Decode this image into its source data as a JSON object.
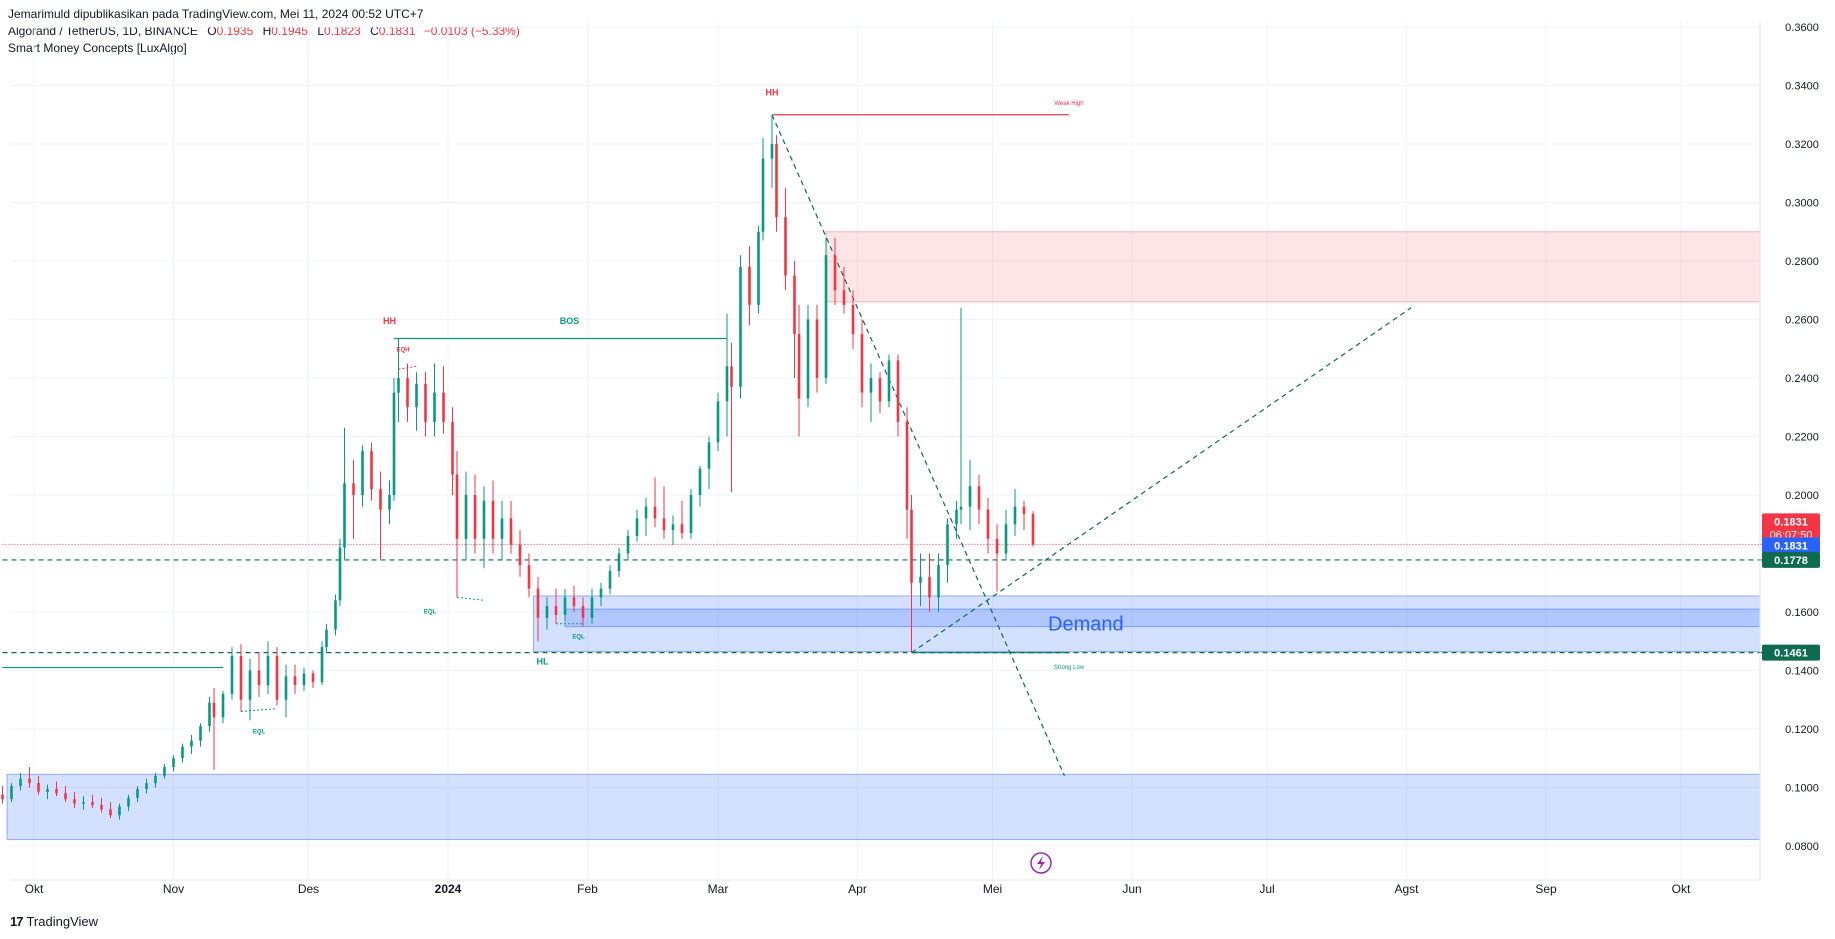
{
  "header": {
    "publisher": "Jemarimuld dipublikasikan pada TradingView.com, Mei 11, 2024 00:52 UTC+7",
    "symbol": "Algorand / TetherUS, 1D, BINANCE",
    "o_label": "O",
    "o_value": "0.1935",
    "h_label": "H",
    "h_value": "0.1945",
    "l_label": "L",
    "l_value": "0.1823",
    "c_label": "C",
    "c_value": "0.1831",
    "change": "−0.0103 (−5.33%)",
    "indicator": "Smart Money Concepts [LuxAlgo]"
  },
  "footer": {
    "logo_mark": "17",
    "brand": "TradingView"
  },
  "chart_data": {
    "type": "candlestick",
    "timeframe": "1D",
    "yticks": [
      0.36,
      0.34,
      0.32,
      0.3,
      0.28,
      0.26,
      0.24,
      0.22,
      0.2,
      0.16,
      0.14,
      0.12,
      0.1,
      0.08
    ],
    "xticks": [
      "Okt",
      "Nov",
      "Des",
      "2024",
      "Feb",
      "Mar",
      "Apr",
      "Mei",
      "Jun",
      "Jul",
      "Agst",
      "Sep",
      "Okt"
    ],
    "ylim": [
      0.073,
      0.36
    ],
    "colors": {
      "up": "#089981",
      "down": "#f23645",
      "demand": "#2962ff",
      "supply": "#f23645",
      "zone_text": "#2962ff"
    },
    "price_labels": [
      {
        "value": 0.1831,
        "text": "0.1831",
        "countdown": "06:07:50",
        "color": "#f23645"
      },
      {
        "value": 0.1831,
        "text": "0.1831",
        "color": "#2962ff"
      },
      {
        "value": 0.1778,
        "text": "0.1778",
        "color": "#0e6b4f"
      },
      {
        "value": 0.1461,
        "text": "0.1461",
        "color": "#0e6b4f"
      }
    ],
    "zones": [
      {
        "kind": "supply",
        "x_start": "2024-03-25",
        "top": 0.29,
        "bottom": 0.266
      },
      {
        "kind": "demand",
        "x_start": "2024-01-20",
        "top": 0.1655,
        "bottom": 0.1465,
        "label": "Demand"
      },
      {
        "kind": "demand",
        "x_start": "2024-01-27",
        "top": 0.161,
        "bottom": 0.155
      },
      {
        "kind": "demand",
        "x_start": "2023-09-25",
        "top": 0.1045,
        "bottom": 0.0822
      }
    ],
    "labels": [
      {
        "text": "HH",
        "date": "2024-03-13",
        "value": 0.3365,
        "color": "#f23645"
      },
      {
        "text": "Weak High",
        "date": "2024-05-18",
        "value": 0.3333,
        "color": "#f23645"
      },
      {
        "text": "HH",
        "date": "2023-12-19",
        "value": 0.2585,
        "color": "#f23645"
      },
      {
        "text": "BOS",
        "date": "2024-01-28",
        "value": 0.2585,
        "color": "#089981"
      },
      {
        "text": "EQH",
        "date": "2023-12-22",
        "value": 0.249,
        "color": "#f23645"
      },
      {
        "text": "EQL",
        "date": "2023-12-28",
        "value": 0.1595,
        "color": "#089981"
      },
      {
        "text": "EQL",
        "date": "2024-01-30",
        "value": 0.151,
        "color": "#089981"
      },
      {
        "text": "HL",
        "date": "2024-01-22",
        "value": 0.142,
        "color": "#089981"
      },
      {
        "text": "EQL",
        "date": "2023-11-20",
        "value": 0.1185,
        "color": "#089981"
      },
      {
        "text": "Strong Low",
        "date": "2024-05-18",
        "value": 0.1405,
        "color": "#089981"
      }
    ],
    "candles": [
      {
        "d": "2023-09-24",
        "o": 0.0975,
        "h": 0.1005,
        "l": 0.0945,
        "c": 0.096
      },
      {
        "d": "2023-09-26",
        "o": 0.096,
        "h": 0.1015,
        "l": 0.095,
        "c": 0.1005
      },
      {
        "d": "2023-09-28",
        "o": 0.1005,
        "h": 0.105,
        "l": 0.099,
        "c": 0.103
      },
      {
        "d": "2023-09-30",
        "o": 0.103,
        "h": 0.107,
        "l": 0.1,
        "c": 0.1015
      },
      {
        "d": "2023-10-02",
        "o": 0.1015,
        "h": 0.104,
        "l": 0.0975,
        "c": 0.0985
      },
      {
        "d": "2023-10-04",
        "o": 0.0985,
        "h": 0.101,
        "l": 0.096,
        "c": 0.0995
      },
      {
        "d": "2023-10-06",
        "o": 0.0995,
        "h": 0.102,
        "l": 0.097,
        "c": 0.098
      },
      {
        "d": "2023-10-08",
        "o": 0.098,
        "h": 0.1005,
        "l": 0.095,
        "c": 0.096
      },
      {
        "d": "2023-10-10",
        "o": 0.096,
        "h": 0.0985,
        "l": 0.093,
        "c": 0.0945
      },
      {
        "d": "2023-10-12",
        "o": 0.0945,
        "h": 0.097,
        "l": 0.0925,
        "c": 0.095
      },
      {
        "d": "2023-10-14",
        "o": 0.095,
        "h": 0.0975,
        "l": 0.093,
        "c": 0.094
      },
      {
        "d": "2023-10-16",
        "o": 0.094,
        "h": 0.0965,
        "l": 0.0915,
        "c": 0.0925
      },
      {
        "d": "2023-10-18",
        "o": 0.0925,
        "h": 0.095,
        "l": 0.0895,
        "c": 0.0905
      },
      {
        "d": "2023-10-20",
        "o": 0.0905,
        "h": 0.0945,
        "l": 0.089,
        "c": 0.0935
      },
      {
        "d": "2023-10-22",
        "o": 0.0935,
        "h": 0.0975,
        "l": 0.092,
        "c": 0.0965
      },
      {
        "d": "2023-10-24",
        "o": 0.0965,
        "h": 0.1005,
        "l": 0.095,
        "c": 0.0995
      },
      {
        "d": "2023-10-26",
        "o": 0.0995,
        "h": 0.103,
        "l": 0.098,
        "c": 0.1015
      },
      {
        "d": "2023-10-28",
        "o": 0.1015,
        "h": 0.105,
        "l": 0.1,
        "c": 0.104
      },
      {
        "d": "2023-10-30",
        "o": 0.104,
        "h": 0.108,
        "l": 0.103,
        "c": 0.107
      },
      {
        "d": "2023-11-01",
        "o": 0.107,
        "h": 0.111,
        "l": 0.1055,
        "c": 0.11
      },
      {
        "d": "2023-11-03",
        "o": 0.11,
        "h": 0.115,
        "l": 0.1085,
        "c": 0.114
      },
      {
        "d": "2023-11-05",
        "o": 0.114,
        "h": 0.118,
        "l": 0.1115,
        "c": 0.116
      },
      {
        "d": "2023-11-07",
        "o": 0.116,
        "h": 0.122,
        "l": 0.114,
        "c": 0.121
      },
      {
        "d": "2023-11-09",
        "o": 0.121,
        "h": 0.131,
        "l": 0.119,
        "c": 0.129
      },
      {
        "d": "2023-11-10",
        "o": 0.129,
        "h": 0.134,
        "l": 0.106,
        "c": 0.124
      },
      {
        "d": "2023-11-12",
        "o": 0.124,
        "h": 0.133,
        "l": 0.122,
        "c": 0.132
      },
      {
        "d": "2023-11-14",
        "o": 0.132,
        "h": 0.148,
        "l": 0.13,
        "c": 0.145
      },
      {
        "d": "2023-11-16",
        "o": 0.145,
        "h": 0.149,
        "l": 0.126,
        "c": 0.13
      },
      {
        "d": "2023-11-18",
        "o": 0.13,
        "h": 0.144,
        "l": 0.123,
        "c": 0.14
      },
      {
        "d": "2023-11-20",
        "o": 0.14,
        "h": 0.146,
        "l": 0.131,
        "c": 0.135
      },
      {
        "d": "2023-11-22",
        "o": 0.135,
        "h": 0.15,
        "l": 0.132,
        "c": 0.145
      },
      {
        "d": "2023-11-24",
        "o": 0.145,
        "h": 0.148,
        "l": 0.128,
        "c": 0.13
      },
      {
        "d": "2023-11-26",
        "o": 0.13,
        "h": 0.142,
        "l": 0.124,
        "c": 0.138
      },
      {
        "d": "2023-11-28",
        "o": 0.138,
        "h": 0.142,
        "l": 0.132,
        "c": 0.135
      },
      {
        "d": "2023-11-30",
        "o": 0.135,
        "h": 0.141,
        "l": 0.133,
        "c": 0.139
      },
      {
        "d": "2023-12-02",
        "o": 0.139,
        "h": 0.14,
        "l": 0.134,
        "c": 0.136
      },
      {
        "d": "2023-12-04",
        "o": 0.136,
        "h": 0.15,
        "l": 0.135,
        "c": 0.148
      },
      {
        "d": "2023-12-05",
        "o": 0.148,
        "h": 0.156,
        "l": 0.146,
        "c": 0.154
      },
      {
        "d": "2023-12-07",
        "o": 0.154,
        "h": 0.166,
        "l": 0.152,
        "c": 0.164
      },
      {
        "d": "2023-12-08",
        "o": 0.164,
        "h": 0.185,
        "l": 0.162,
        "c": 0.182
      },
      {
        "d": "2023-12-09",
        "o": 0.182,
        "h": 0.223,
        "l": 0.178,
        "c": 0.204
      },
      {
        "d": "2023-12-11",
        "o": 0.204,
        "h": 0.212,
        "l": 0.185,
        "c": 0.2
      },
      {
        "d": "2023-12-13",
        "o": 0.2,
        "h": 0.217,
        "l": 0.196,
        "c": 0.215
      },
      {
        "d": "2023-12-15",
        "o": 0.215,
        "h": 0.218,
        "l": 0.198,
        "c": 0.202
      },
      {
        "d": "2023-12-17",
        "o": 0.202,
        "h": 0.208,
        "l": 0.178,
        "c": 0.195
      },
      {
        "d": "2023-12-19",
        "o": 0.195,
        "h": 0.205,
        "l": 0.19,
        "c": 0.2
      },
      {
        "d": "2023-12-20",
        "o": 0.2,
        "h": 0.24,
        "l": 0.198,
        "c": 0.235
      },
      {
        "d": "2023-12-21",
        "o": 0.235,
        "h": 0.2535,
        "l": 0.225,
        "c": 0.24
      },
      {
        "d": "2023-12-23",
        "o": 0.24,
        "h": 0.245,
        "l": 0.225,
        "c": 0.23
      },
      {
        "d": "2023-12-25",
        "o": 0.23,
        "h": 0.242,
        "l": 0.222,
        "c": 0.238
      },
      {
        "d": "2023-12-27",
        "o": 0.238,
        "h": 0.242,
        "l": 0.22,
        "c": 0.225
      },
      {
        "d": "2023-12-29",
        "o": 0.225,
        "h": 0.245,
        "l": 0.22,
        "c": 0.235
      },
      {
        "d": "2023-12-31",
        "o": 0.235,
        "h": 0.244,
        "l": 0.221,
        "c": 0.225
      },
      {
        "d": "2024-01-02",
        "o": 0.225,
        "h": 0.23,
        "l": 0.2,
        "c": 0.207
      },
      {
        "d": "2024-01-03",
        "o": 0.207,
        "h": 0.215,
        "l": 0.165,
        "c": 0.185
      },
      {
        "d": "2024-01-05",
        "o": 0.185,
        "h": 0.208,
        "l": 0.178,
        "c": 0.2
      },
      {
        "d": "2024-01-07",
        "o": 0.2,
        "h": 0.207,
        "l": 0.18,
        "c": 0.185
      },
      {
        "d": "2024-01-09",
        "o": 0.185,
        "h": 0.203,
        "l": 0.175,
        "c": 0.198
      },
      {
        "d": "2024-01-11",
        "o": 0.198,
        "h": 0.205,
        "l": 0.18,
        "c": 0.185
      },
      {
        "d": "2024-01-13",
        "o": 0.185,
        "h": 0.198,
        "l": 0.178,
        "c": 0.192
      },
      {
        "d": "2024-01-15",
        "o": 0.192,
        "h": 0.198,
        "l": 0.18,
        "c": 0.183
      },
      {
        "d": "2024-01-17",
        "o": 0.183,
        "h": 0.188,
        "l": 0.172,
        "c": 0.176
      },
      {
        "d": "2024-01-19",
        "o": 0.176,
        "h": 0.18,
        "l": 0.165,
        "c": 0.168
      },
      {
        "d": "2024-01-21",
        "o": 0.168,
        "h": 0.172,
        "l": 0.15,
        "c": 0.158
      },
      {
        "d": "2024-01-23",
        "o": 0.158,
        "h": 0.165,
        "l": 0.154,
        "c": 0.162
      },
      {
        "d": "2024-01-25",
        "o": 0.162,
        "h": 0.168,
        "l": 0.156,
        "c": 0.159
      },
      {
        "d": "2024-01-27",
        "o": 0.159,
        "h": 0.168,
        "l": 0.157,
        "c": 0.165
      },
      {
        "d": "2024-01-29",
        "o": 0.165,
        "h": 0.169,
        "l": 0.16,
        "c": 0.162
      },
      {
        "d": "2024-01-31",
        "o": 0.162,
        "h": 0.165,
        "l": 0.155,
        "c": 0.158
      },
      {
        "d": "2024-02-02",
        "o": 0.158,
        "h": 0.168,
        "l": 0.156,
        "c": 0.165
      },
      {
        "d": "2024-02-04",
        "o": 0.165,
        "h": 0.17,
        "l": 0.162,
        "c": 0.168
      },
      {
        "d": "2024-02-06",
        "o": 0.168,
        "h": 0.176,
        "l": 0.166,
        "c": 0.174
      },
      {
        "d": "2024-02-08",
        "o": 0.174,
        "h": 0.182,
        "l": 0.172,
        "c": 0.18
      },
      {
        "d": "2024-02-10",
        "o": 0.18,
        "h": 0.188,
        "l": 0.178,
        "c": 0.186
      },
      {
        "d": "2024-02-12",
        "o": 0.186,
        "h": 0.195,
        "l": 0.184,
        "c": 0.192
      },
      {
        "d": "2024-02-14",
        "o": 0.192,
        "h": 0.199,
        "l": 0.186,
        "c": 0.196
      },
      {
        "d": "2024-02-16",
        "o": 0.196,
        "h": 0.206,
        "l": 0.189,
        "c": 0.192
      },
      {
        "d": "2024-02-18",
        "o": 0.192,
        "h": 0.203,
        "l": 0.185,
        "c": 0.188
      },
      {
        "d": "2024-02-20",
        "o": 0.188,
        "h": 0.193,
        "l": 0.183,
        "c": 0.19
      },
      {
        "d": "2024-02-22",
        "o": 0.19,
        "h": 0.198,
        "l": 0.185,
        "c": 0.187
      },
      {
        "d": "2024-02-24",
        "o": 0.187,
        "h": 0.202,
        "l": 0.185,
        "c": 0.2
      },
      {
        "d": "2024-02-26",
        "o": 0.2,
        "h": 0.21,
        "l": 0.196,
        "c": 0.209
      },
      {
        "d": "2024-02-28",
        "o": 0.209,
        "h": 0.22,
        "l": 0.202,
        "c": 0.218
      },
      {
        "d": "2024-03-01",
        "o": 0.218,
        "h": 0.235,
        "l": 0.215,
        "c": 0.232
      },
      {
        "d": "2024-03-03",
        "o": 0.232,
        "h": 0.262,
        "l": 0.22,
        "c": 0.244
      },
      {
        "d": "2024-03-04",
        "o": 0.244,
        "h": 0.252,
        "l": 0.201,
        "c": 0.237
      },
      {
        "d": "2024-03-06",
        "o": 0.237,
        "h": 0.282,
        "l": 0.233,
        "c": 0.278
      },
      {
        "d": "2024-03-08",
        "o": 0.278,
        "h": 0.285,
        "l": 0.258,
        "c": 0.265
      },
      {
        "d": "2024-03-10",
        "o": 0.265,
        "h": 0.292,
        "l": 0.262,
        "c": 0.29
      },
      {
        "d": "2024-03-11",
        "o": 0.29,
        "h": 0.322,
        "l": 0.287,
        "c": 0.315
      },
      {
        "d": "2024-03-13",
        "o": 0.315,
        "h": 0.33,
        "l": 0.305,
        "c": 0.32
      },
      {
        "d": "2024-03-14",
        "o": 0.32,
        "h": 0.323,
        "l": 0.29,
        "c": 0.295
      },
      {
        "d": "2024-03-16",
        "o": 0.295,
        "h": 0.305,
        "l": 0.27,
        "c": 0.275
      },
      {
        "d": "2024-03-18",
        "o": 0.275,
        "h": 0.28,
        "l": 0.24,
        "c": 0.255
      },
      {
        "d": "2024-03-19",
        "o": 0.255,
        "h": 0.265,
        "l": 0.22,
        "c": 0.233
      },
      {
        "d": "2024-03-21",
        "o": 0.233,
        "h": 0.265,
        "l": 0.23,
        "c": 0.26
      },
      {
        "d": "2024-03-23",
        "o": 0.26,
        "h": 0.265,
        "l": 0.235,
        "c": 0.24
      },
      {
        "d": "2024-03-25",
        "o": 0.24,
        "h": 0.288,
        "l": 0.238,
        "c": 0.282
      },
      {
        "d": "2024-03-27",
        "o": 0.282,
        "h": 0.288,
        "l": 0.265,
        "c": 0.27
      },
      {
        "d": "2024-03-29",
        "o": 0.27,
        "h": 0.278,
        "l": 0.262,
        "c": 0.265
      },
      {
        "d": "2024-03-31",
        "o": 0.265,
        "h": 0.27,
        "l": 0.25,
        "c": 0.255
      },
      {
        "d": "2024-04-02",
        "o": 0.255,
        "h": 0.26,
        "l": 0.23,
        "c": 0.235
      },
      {
        "d": "2024-04-04",
        "o": 0.235,
        "h": 0.245,
        "l": 0.225,
        "c": 0.24
      },
      {
        "d": "2024-04-06",
        "o": 0.24,
        "h": 0.242,
        "l": 0.228,
        "c": 0.232
      },
      {
        "d": "2024-04-08",
        "o": 0.232,
        "h": 0.248,
        "l": 0.23,
        "c": 0.246
      },
      {
        "d": "2024-04-10",
        "o": 0.246,
        "h": 0.248,
        "l": 0.22,
        "c": 0.225
      },
      {
        "d": "2024-04-12",
        "o": 0.225,
        "h": 0.23,
        "l": 0.185,
        "c": 0.195
      },
      {
        "d": "2024-04-13",
        "o": 0.195,
        "h": 0.2,
        "l": 0.146,
        "c": 0.17
      },
      {
        "d": "2024-04-15",
        "o": 0.17,
        "h": 0.18,
        "l": 0.162,
        "c": 0.172
      },
      {
        "d": "2024-04-17",
        "o": 0.172,
        "h": 0.18,
        "l": 0.16,
        "c": 0.165
      },
      {
        "d": "2024-04-19",
        "o": 0.165,
        "h": 0.18,
        "l": 0.16,
        "c": 0.176
      },
      {
        "d": "2024-04-21",
        "o": 0.176,
        "h": 0.192,
        "l": 0.17,
        "c": 0.19
      },
      {
        "d": "2024-04-23",
        "o": 0.19,
        "h": 0.198,
        "l": 0.185,
        "c": 0.195
      },
      {
        "d": "2024-04-24",
        "o": 0.195,
        "h": 0.264,
        "l": 0.19,
        "c": 0.196
      },
      {
        "d": "2024-04-26",
        "o": 0.196,
        "h": 0.212,
        "l": 0.188,
        "c": 0.203
      },
      {
        "d": "2024-04-28",
        "o": 0.203,
        "h": 0.207,
        "l": 0.19,
        "c": 0.195
      },
      {
        "d": "2024-04-30",
        "o": 0.195,
        "h": 0.199,
        "l": 0.18,
        "c": 0.185
      },
      {
        "d": "2024-05-02",
        "o": 0.185,
        "h": 0.19,
        "l": 0.167,
        "c": 0.18
      },
      {
        "d": "2024-05-04",
        "o": 0.18,
        "h": 0.195,
        "l": 0.178,
        "c": 0.19
      },
      {
        "d": "2024-05-06",
        "o": 0.19,
        "h": 0.202,
        "l": 0.186,
        "c": 0.196
      },
      {
        "d": "2024-05-08",
        "o": 0.196,
        "h": 0.198,
        "l": 0.188,
        "c": 0.1935
      },
      {
        "d": "2024-05-10",
        "o": 0.1935,
        "h": 0.1945,
        "l": 0.1823,
        "c": 0.1831
      }
    ]
  }
}
